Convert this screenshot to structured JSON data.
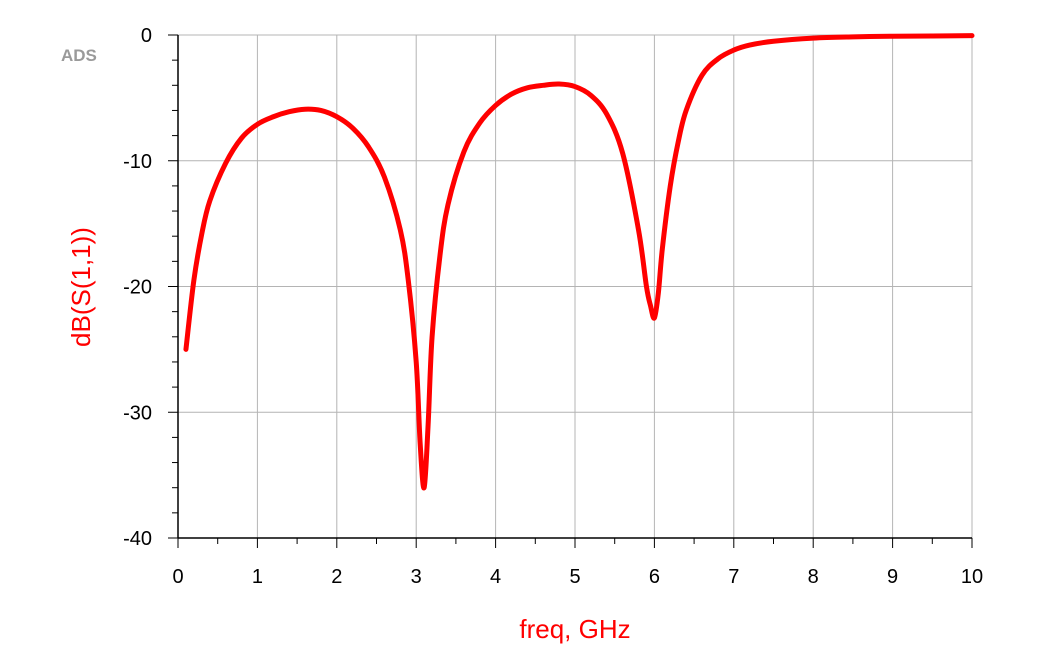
{
  "watermark": "ADS",
  "colors": {
    "trace": "#ff0000",
    "grid": "#b4b4b4",
    "axis": "#000000",
    "ylabel": "#ff0000",
    "xlabel": "#ff0000",
    "watermark": "#9a9a9a"
  },
  "chart_data": {
    "type": "line",
    "title": "",
    "xlabel": "freq, GHz",
    "ylabel": "dB(S(1,1))",
    "xlim": [
      0,
      10
    ],
    "ylim": [
      -40,
      0
    ],
    "xticks": [
      0,
      1,
      2,
      3,
      4,
      5,
      6,
      7,
      8,
      9,
      10
    ],
    "yticks": [
      0,
      -10,
      -20,
      -30,
      -40
    ],
    "grid": true,
    "legend": "none",
    "series": [
      {
        "x": [
          0.1,
          0.2,
          0.3,
          0.4,
          0.6,
          0.8,
          1.0,
          1.2,
          1.4,
          1.6,
          1.8,
          2.0,
          2.2,
          2.4,
          2.6,
          2.8,
          2.9,
          3.0,
          3.05,
          3.1,
          3.15,
          3.2,
          3.3,
          3.4,
          3.6,
          3.8,
          4.0,
          4.2,
          4.4,
          4.6,
          4.8,
          5.0,
          5.2,
          5.4,
          5.6,
          5.8,
          5.9,
          5.95,
          6.0,
          6.05,
          6.1,
          6.2,
          6.3,
          6.4,
          6.6,
          6.8,
          7.0,
          7.2,
          7.5,
          8.0,
          8.5,
          9.0,
          9.5,
          10.0
        ],
        "y": [
          -25.0,
          -19.5,
          -15.8,
          -13.2,
          -10.2,
          -8.2,
          -7.1,
          -6.5,
          -6.1,
          -5.9,
          -6.0,
          -6.5,
          -7.4,
          -8.9,
          -11.3,
          -15.5,
          -19.5,
          -26.0,
          -32.5,
          -36.0,
          -31.0,
          -24.0,
          -17.5,
          -13.5,
          -9.3,
          -7.0,
          -5.6,
          -4.7,
          -4.2,
          -4.0,
          -3.9,
          -4.1,
          -4.8,
          -6.3,
          -9.4,
          -15.5,
          -20.0,
          -21.5,
          -22.5,
          -20.5,
          -17.0,
          -12.0,
          -8.5,
          -6.0,
          -3.2,
          -1.9,
          -1.2,
          -0.8,
          -0.5,
          -0.25,
          -0.15,
          -0.1,
          -0.08,
          -0.05
        ]
      }
    ]
  }
}
